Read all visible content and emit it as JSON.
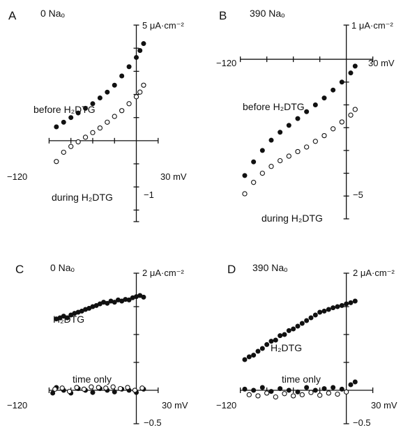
{
  "chart_data": [
    {
      "type": "scatter",
      "panel": "A",
      "condition": "0 Naₒ",
      "y_units_label": "5 μA·cm⁻²",
      "x_units_label": "30 mV",
      "xlim": [
        -130,
        35
      ],
      "ylim": [
        -3.5,
        5
      ],
      "x_tick_labels": [
        {
          "value": -120,
          "text": "−120"
        }
      ],
      "y_tick_labels": [
        {
          "value": -1,
          "text": "−1"
        }
      ],
      "annotations": [
        "before H₂DTG",
        "during H₂DTG"
      ],
      "series": [
        {
          "name": "before H₂DTG",
          "marker": "filled",
          "points": [
            [
              -110,
              0.6
            ],
            [
              -100,
              0.8
            ],
            [
              -90,
              1.0
            ],
            [
              -80,
              1.2
            ],
            [
              -70,
              1.4
            ],
            [
              -60,
              1.6
            ],
            [
              -50,
              1.85
            ],
            [
              -40,
              2.1
            ],
            [
              -30,
              2.4
            ],
            [
              -20,
              2.8
            ],
            [
              -10,
              3.2
            ],
            [
              0,
              3.6
            ],
            [
              5,
              3.9
            ],
            [
              10,
              4.2
            ]
          ]
        },
        {
          "name": "during H₂DTG",
          "marker": "open",
          "points": [
            [
              -110,
              -0.9
            ],
            [
              -100,
              -0.5
            ],
            [
              -90,
              -0.25
            ],
            [
              -80,
              -0.05
            ],
            [
              -70,
              0.15
            ],
            [
              -60,
              0.35
            ],
            [
              -50,
              0.55
            ],
            [
              -40,
              0.8
            ],
            [
              -30,
              1.05
            ],
            [
              -20,
              1.3
            ],
            [
              -10,
              1.6
            ],
            [
              0,
              1.9
            ],
            [
              5,
              2.1
            ],
            [
              10,
              2.4
            ]
          ]
        }
      ]
    },
    {
      "type": "scatter",
      "panel": "B",
      "condition": "390 Naₒ",
      "y_units_label": "1 μA·cm⁻²",
      "x_units_label": "30 mV",
      "xlim": [
        -130,
        35
      ],
      "ylim": [
        -7,
        1.5
      ],
      "x_tick_labels": [
        {
          "value": -120,
          "text": "−120"
        }
      ],
      "y_tick_labels": [
        {
          "value": -5,
          "text": "−5"
        }
      ],
      "annotations": [
        "before H₂DTG",
        "during H₂DTG"
      ],
      "series": [
        {
          "name": "before H₂DTG",
          "marker": "filled",
          "points": [
            [
              -115,
              -5.1
            ],
            [
              -105,
              -4.5
            ],
            [
              -95,
              -4.0
            ],
            [
              -85,
              -3.55
            ],
            [
              -75,
              -3.2
            ],
            [
              -65,
              -2.9
            ],
            [
              -55,
              -2.6
            ],
            [
              -45,
              -2.3
            ],
            [
              -35,
              -2.0
            ],
            [
              -25,
              -1.7
            ],
            [
              -15,
              -1.35
            ],
            [
              -5,
              -1.0
            ],
            [
              5,
              -0.6
            ],
            [
              10,
              -0.3
            ]
          ]
        },
        {
          "name": "during H₂DTG",
          "marker": "open",
          "points": [
            [
              -115,
              -5.9
            ],
            [
              -105,
              -5.4
            ],
            [
              -95,
              -5.0
            ],
            [
              -85,
              -4.7
            ],
            [
              -75,
              -4.45
            ],
            [
              -65,
              -4.25
            ],
            [
              -55,
              -4.05
            ],
            [
              -45,
              -3.85
            ],
            [
              -35,
              -3.6
            ],
            [
              -25,
              -3.35
            ],
            [
              -15,
              -3.05
            ],
            [
              -5,
              -2.75
            ],
            [
              5,
              -2.45
            ],
            [
              10,
              -2.2
            ]
          ]
        }
      ]
    },
    {
      "type": "scatter",
      "panel": "C",
      "condition": "0 Naₒ",
      "y_units_label": "2 μA·cm⁻²",
      "x_units_label": "30 mV",
      "xlim": [
        -130,
        35
      ],
      "ylim": [
        -0.6,
        2.1
      ],
      "x_tick_labels": [
        {
          "value": -120,
          "text": "−120"
        }
      ],
      "y_tick_labels": [
        {
          "value": -0.5,
          "text": "−0.5"
        }
      ],
      "annotations": [
        "H₂DTG",
        "time only"
      ],
      "series": [
        {
          "name": "H₂DTG",
          "marker": "filled",
          "points": [
            [
              -110,
              1.28
            ],
            [
              -105,
              1.3
            ],
            [
              -100,
              1.33
            ],
            [
              -95,
              1.3
            ],
            [
              -90,
              1.35
            ],
            [
              -85,
              1.38
            ],
            [
              -80,
              1.4
            ],
            [
              -75,
              1.42
            ],
            [
              -70,
              1.45
            ],
            [
              -65,
              1.47
            ],
            [
              -60,
              1.5
            ],
            [
              -55,
              1.52
            ],
            [
              -50,
              1.55
            ],
            [
              -45,
              1.58
            ],
            [
              -40,
              1.56
            ],
            [
              -35,
              1.6
            ],
            [
              -30,
              1.58
            ],
            [
              -25,
              1.62
            ],
            [
              -20,
              1.6
            ],
            [
              -15,
              1.63
            ],
            [
              -10,
              1.62
            ],
            [
              -5,
              1.66
            ],
            [
              0,
              1.68
            ],
            [
              5,
              1.7
            ],
            [
              10,
              1.67
            ]
          ]
        },
        {
          "name": "time only (filled)",
          "marker": "filled",
          "points": [
            [
              -115,
              -0.05
            ],
            [
              -110,
              0.05
            ],
            [
              -100,
              0.0
            ],
            [
              -90,
              -0.05
            ],
            [
              -80,
              0.03
            ],
            [
              -70,
              0.0
            ],
            [
              -60,
              -0.04
            ],
            [
              -50,
              0.03
            ],
            [
              -40,
              0.0
            ],
            [
              -30,
              -0.03
            ],
            [
              -20,
              0.02
            ],
            [
              -10,
              0.0
            ],
            [
              0,
              -0.04
            ],
            [
              10,
              0.02
            ]
          ]
        },
        {
          "name": "time only (open)",
          "marker": "open",
          "points": [
            [
              -112,
              0.02
            ],
            [
              -102,
              0.04
            ],
            [
              -92,
              -0.02
            ],
            [
              -82,
              0.05
            ],
            [
              -72,
              0.02
            ],
            [
              -62,
              0.06
            ],
            [
              -52,
              0.05
            ],
            [
              -42,
              0.04
            ],
            [
              -32,
              0.06
            ],
            [
              -22,
              0.03
            ],
            [
              -12,
              0.05
            ],
            [
              -2,
              0.0
            ],
            [
              8,
              0.04
            ]
          ]
        }
      ]
    },
    {
      "type": "scatter",
      "panel": "D",
      "condition": "390 Naₒ",
      "y_units_label": "2 μA·cm⁻²",
      "x_units_label": "30 mV",
      "xlim": [
        -130,
        35
      ],
      "ylim": [
        -0.6,
        2.1
      ],
      "x_tick_labels": [
        {
          "value": -120,
          "text": "−120"
        }
      ],
      "y_tick_labels": [
        {
          "value": -0.5,
          "text": "−0.5"
        }
      ],
      "annotations": [
        "H₂DTG",
        "time only"
      ],
      "series": [
        {
          "name": "H₂DTG",
          "marker": "filled",
          "points": [
            [
              -115,
              0.55
            ],
            [
              -110,
              0.6
            ],
            [
              -105,
              0.63
            ],
            [
              -100,
              0.7
            ],
            [
              -95,
              0.75
            ],
            [
              -90,
              0.82
            ],
            [
              -85,
              0.88
            ],
            [
              -80,
              0.9
            ],
            [
              -75,
              0.98
            ],
            [
              -70,
              1.0
            ],
            [
              -65,
              1.07
            ],
            [
              -60,
              1.1
            ],
            [
              -55,
              1.15
            ],
            [
              -50,
              1.2
            ],
            [
              -45,
              1.25
            ],
            [
              -40,
              1.3
            ],
            [
              -35,
              1.35
            ],
            [
              -30,
              1.4
            ],
            [
              -25,
              1.42
            ],
            [
              -20,
              1.45
            ],
            [
              -15,
              1.48
            ],
            [
              -10,
              1.5
            ],
            [
              -5,
              1.52
            ],
            [
              0,
              1.55
            ],
            [
              5,
              1.57
            ],
            [
              10,
              1.6
            ]
          ]
        },
        {
          "name": "time only (filled)",
          "marker": "filled",
          "points": [
            [
              -115,
              0.02
            ],
            [
              -105,
              0.0
            ],
            [
              -95,
              0.05
            ],
            [
              -85,
              -0.02
            ],
            [
              -75,
              0.03
            ],
            [
              -65,
              0.0
            ],
            [
              -55,
              -0.03
            ],
            [
              -45,
              0.05
            ],
            [
              -35,
              0.0
            ],
            [
              -25,
              0.03
            ],
            [
              -15,
              0.05
            ],
            [
              -5,
              0.02
            ],
            [
              5,
              0.1
            ],
            [
              10,
              0.15
            ]
          ]
        },
        {
          "name": "time only (open)",
          "marker": "open",
          "points": [
            [
              -110,
              -0.08
            ],
            [
              -100,
              -0.1
            ],
            [
              -90,
              -0.05
            ],
            [
              -80,
              -0.12
            ],
            [
              -70,
              -0.06
            ],
            [
              -60,
              -0.1
            ],
            [
              -50,
              -0.08
            ],
            [
              -40,
              -0.04
            ],
            [
              -30,
              -0.09
            ],
            [
              -20,
              -0.05
            ],
            [
              -10,
              -0.07
            ],
            [
              0,
              -0.03
            ]
          ]
        }
      ]
    }
  ]
}
